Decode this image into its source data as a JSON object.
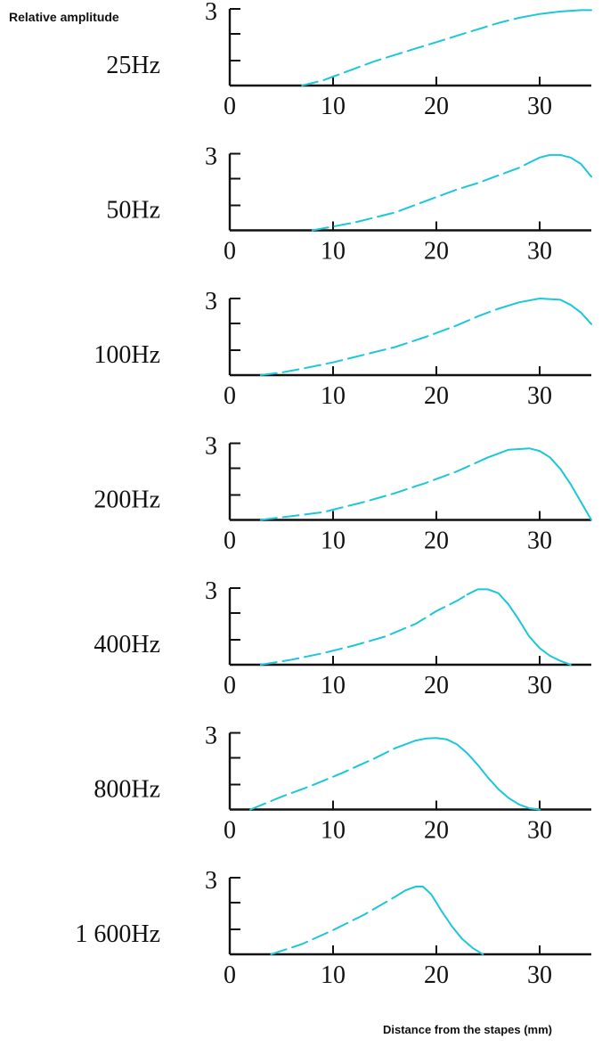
{
  "figure": {
    "y_axis_title": "Relative amplitude",
    "x_axis_title": "Distance from the stapes (mm)"
  },
  "chart_data": [
    {
      "type": "line",
      "label": "25Hz",
      "xlim": [
        0,
        35
      ],
      "ylim": [
        0,
        3
      ],
      "xticks": [
        "0",
        "10",
        "20",
        "30"
      ],
      "ytick_label": "3",
      "color": "#1cc7d9",
      "x": [
        7,
        8,
        9,
        10,
        12,
        14,
        16,
        18,
        20,
        22,
        24,
        26,
        28,
        30,
        32,
        34,
        35
      ],
      "y": [
        0.0,
        0.1,
        0.2,
        0.35,
        0.65,
        0.95,
        1.2,
        1.45,
        1.7,
        1.95,
        2.2,
        2.45,
        2.65,
        2.8,
        2.9,
        2.95,
        2.95
      ]
    },
    {
      "type": "line",
      "label": "50Hz",
      "xlim": [
        0,
        35
      ],
      "ylim": [
        0,
        3
      ],
      "xticks": [
        "0",
        "10",
        "20",
        "30"
      ],
      "ytick_label": "3",
      "color": "#1cc7d9",
      "x": [
        8,
        10,
        12,
        14,
        16,
        18,
        20,
        22,
        24,
        26,
        28,
        29,
        30,
        31,
        32,
        33,
        34,
        35
      ],
      "y": [
        0.0,
        0.15,
        0.3,
        0.5,
        0.7,
        1.0,
        1.3,
        1.6,
        1.85,
        2.15,
        2.45,
        2.65,
        2.85,
        2.95,
        2.95,
        2.85,
        2.6,
        2.1
      ]
    },
    {
      "type": "line",
      "label": "100Hz",
      "xlim": [
        0,
        35
      ],
      "ylim": [
        0,
        3
      ],
      "xticks": [
        "0",
        "10",
        "20",
        "30"
      ],
      "ytick_label": "3",
      "color": "#1cc7d9",
      "x": [
        3,
        5,
        7,
        10,
        13,
        16,
        19,
        22,
        24,
        26,
        28,
        30,
        32,
        33,
        34,
        35
      ],
      "y": [
        0.0,
        0.1,
        0.25,
        0.5,
        0.8,
        1.1,
        1.5,
        1.95,
        2.3,
        2.6,
        2.85,
        3.0,
        2.95,
        2.75,
        2.45,
        2.0
      ]
    },
    {
      "type": "line",
      "label": "200Hz",
      "xlim": [
        0,
        35
      ],
      "ylim": [
        0,
        3
      ],
      "xticks": [
        "0",
        "10",
        "20",
        "30"
      ],
      "ytick_label": "3",
      "color": "#1cc7d9",
      "x": [
        3,
        6,
        9,
        10,
        13,
        16,
        19,
        22,
        25,
        27,
        29,
        30,
        31,
        32,
        33,
        34,
        35
      ],
      "y": [
        0.0,
        0.15,
        0.3,
        0.4,
        0.7,
        1.05,
        1.45,
        1.9,
        2.45,
        2.75,
        2.8,
        2.7,
        2.45,
        2.0,
        1.4,
        0.7,
        0.0
      ]
    },
    {
      "type": "line",
      "label": "400Hz",
      "xlim": [
        0,
        35
      ],
      "ylim": [
        0,
        3
      ],
      "xticks": [
        "0",
        "10",
        "20",
        "30"
      ],
      "ytick_label": "3",
      "color": "#1cc7d9",
      "x": [
        3,
        6,
        9,
        12,
        15,
        18,
        20,
        22,
        23,
        24,
        25,
        26,
        27,
        28,
        29,
        30,
        31,
        32,
        33
      ],
      "y": [
        0.0,
        0.2,
        0.45,
        0.75,
        1.1,
        1.6,
        2.1,
        2.5,
        2.75,
        2.95,
        2.95,
        2.8,
        2.35,
        1.75,
        1.1,
        0.65,
        0.35,
        0.15,
        0.0
      ]
    },
    {
      "type": "line",
      "label": "800Hz",
      "xlim": [
        0,
        35
      ],
      "ylim": [
        0,
        3
      ],
      "xticks": [
        "0",
        "10",
        "20",
        "30"
      ],
      "ytick_label": "3",
      "color": "#1cc7d9",
      "x": [
        2,
        5,
        8,
        11,
        14,
        16,
        18,
        19,
        20,
        21,
        22,
        23,
        24,
        25,
        26,
        27,
        28,
        29,
        30
      ],
      "y": [
        0.0,
        0.5,
        0.95,
        1.45,
        2.0,
        2.4,
        2.7,
        2.78,
        2.8,
        2.75,
        2.55,
        2.2,
        1.75,
        1.25,
        0.8,
        0.45,
        0.2,
        0.05,
        0.0
      ]
    },
    {
      "type": "line",
      "label": "1 600Hz",
      "xlim": [
        0,
        35
      ],
      "ylim": [
        0,
        3
      ],
      "xticks": [
        "0",
        "10",
        "20",
        "30"
      ],
      "ytick_label": "3",
      "color": "#1cc7d9",
      "x": [
        4,
        7,
        10,
        13,
        16,
        17,
        18,
        18.7,
        19.5,
        20.5,
        21.5,
        22.5,
        23.5,
        24.5
      ],
      "y": [
        0.0,
        0.4,
        0.95,
        1.55,
        2.25,
        2.5,
        2.65,
        2.65,
        2.35,
        1.7,
        1.1,
        0.6,
        0.25,
        0.0
      ]
    }
  ]
}
